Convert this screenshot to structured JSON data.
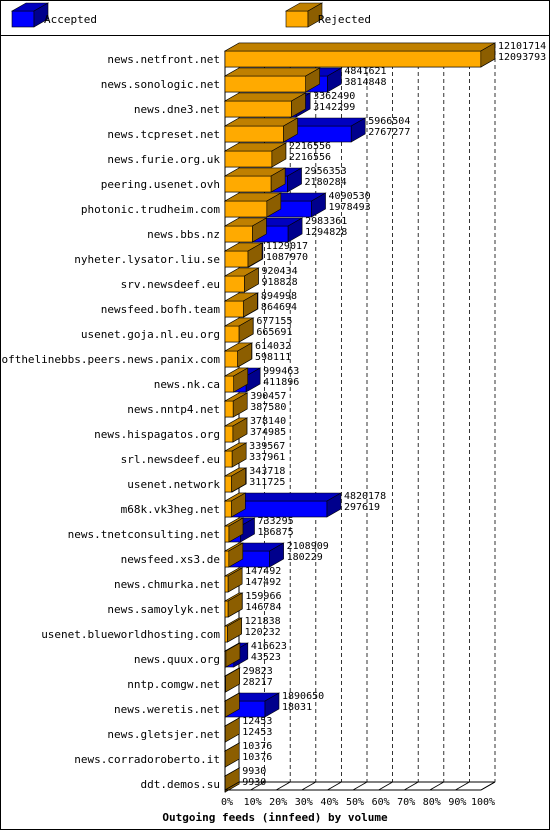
{
  "chart_data": {
    "type": "bar",
    "orientation": "horizontal",
    "style": "3d-overlapping",
    "title": "Outgoing feeds (innfeed) by volume",
    "legend": {
      "placement": "top",
      "entries": [
        {
          "name": "Accepted",
          "color": "#0000ff"
        },
        {
          "name": "Rejected",
          "color": "#ffaa00"
        }
      ]
    },
    "x_axis": {
      "unit": "percent",
      "range": [
        0,
        100
      ],
      "ticks": [
        "0%",
        "10%",
        "20%",
        "30%",
        "40%",
        "50%",
        "60%",
        "70%",
        "80%",
        "90%",
        "100%"
      ],
      "grid": "dashed-vertical"
    },
    "categories": [
      "news.netfront.net",
      "news.sonologic.net",
      "news.dne3.net",
      "news.tcpreset.net",
      "news.furie.org.uk",
      "peering.usenet.ovh",
      "photonic.trudheim.com",
      "news.bbs.nz",
      "nyheter.lysator.liu.se",
      "srv.newsdeef.eu",
      "newsfeed.bofh.team",
      "usenet.goja.nl.eu.org",
      "endofthelinebbs.peers.news.panix.com",
      "news.nk.ca",
      "news.nntp4.net",
      "news.hispagatos.org",
      "srl.newsdeef.eu",
      "usenet.network",
      "m68k.vk3heg.net",
      "news.tnetconsulting.net",
      "newsfeed.xs3.de",
      "news.chmurka.net",
      "news.samoylyk.net",
      "usenet.blueworldhosting.com",
      "news.quux.org",
      "nntp.comgw.net",
      "news.weretis.net",
      "news.gletsjer.net",
      "news.corradoroberto.it",
      "ddt.demos.su"
    ],
    "series": [
      {
        "name": "Accepted",
        "color": "#0000ff",
        "values": [
          12101714,
          4841621,
          3362490,
          5966504,
          2216556,
          2956353,
          4090530,
          2983361,
          1129017,
          920434,
          894998,
          677155,
          614032,
          999463,
          390457,
          378140,
          339567,
          343718,
          4820178,
          733295,
          2108909,
          147492,
          159966,
          121838,
          416623,
          29823,
          1890650,
          12453,
          10376,
          9930
        ]
      },
      {
        "name": "Rejected",
        "color": "#ffaa00",
        "values": [
          12093793,
          3814848,
          3142299,
          2767277,
          2216556,
          2180284,
          1978493,
          1294828,
          1087970,
          918828,
          864694,
          665691,
          598111,
          411896,
          387580,
          374985,
          337961,
          311725,
          297619,
          186875,
          180229,
          147492,
          146784,
          120232,
          43523,
          28217,
          18031,
          12453,
          10376,
          9930
        ]
      }
    ]
  }
}
